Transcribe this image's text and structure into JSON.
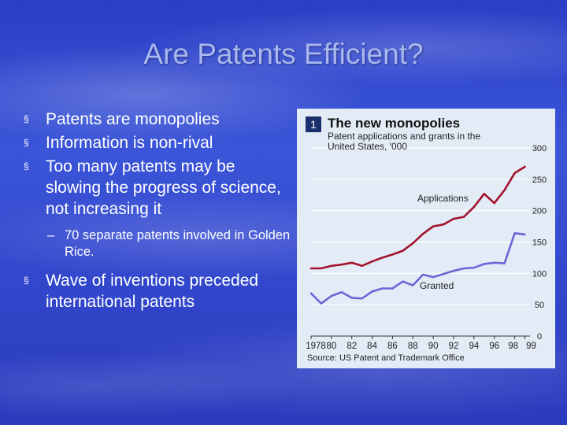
{
  "slide": {
    "title": "Are Patents Efficient?",
    "bullets": [
      "Patents are monopolies",
      "Information is non-rival",
      "Too many patents may be slowing the progress of science, not increasing it"
    ],
    "sub_bullet": "70 separate patents involved in Golden Rice.",
    "bullets_after": [
      "Wave of inventions preceded international patents"
    ],
    "bullet_marker": "§",
    "sub_marker": "–"
  },
  "chart_data": {
    "type": "line",
    "number_badge": "1",
    "title": "The new monopolies",
    "subtitle": "Patent applications and grants in the United States, '000",
    "source": "Source: US Patent and Trademark Office",
    "x_tick_labels": [
      "1978",
      "80",
      "82",
      "84",
      "86",
      "88",
      "90",
      "92",
      "94",
      "96",
      "98",
      "99"
    ],
    "y_ticks": [
      0,
      50,
      100,
      150,
      200,
      250,
      300
    ],
    "ylim": [
      0,
      300
    ],
    "xlim": [
      1978,
      1999.5
    ],
    "series": [
      {
        "name": "Applications",
        "color": "#a3132d",
        "x": [
          1978,
          1979,
          1980,
          1981,
          1982,
          1983,
          1984,
          1985,
          1986,
          1987,
          1988,
          1989,
          1990,
          1991,
          1992,
          1993,
          1994,
          1995,
          1996,
          1997,
          1998,
          1999
        ],
        "y": [
          108,
          108,
          112,
          114,
          117,
          112,
          119,
          125,
          130,
          136,
          148,
          163,
          175,
          178,
          187,
          190,
          206,
          227,
          212,
          233,
          260,
          270
        ]
      },
      {
        "name": "Granted",
        "color": "#6b66d6",
        "x": [
          1978,
          1979,
          1980,
          1981,
          1982,
          1983,
          1984,
          1985,
          1986,
          1987,
          1988,
          1989,
          1990,
          1991,
          1992,
          1993,
          1994,
          1995,
          1996,
          1997,
          1998,
          1999
        ],
        "y": [
          68,
          52,
          64,
          70,
          61,
          60,
          71,
          76,
          76,
          87,
          81,
          98,
          94,
          99,
          104,
          108,
          109,
          115,
          117,
          116,
          164,
          162
        ]
      }
    ]
  }
}
